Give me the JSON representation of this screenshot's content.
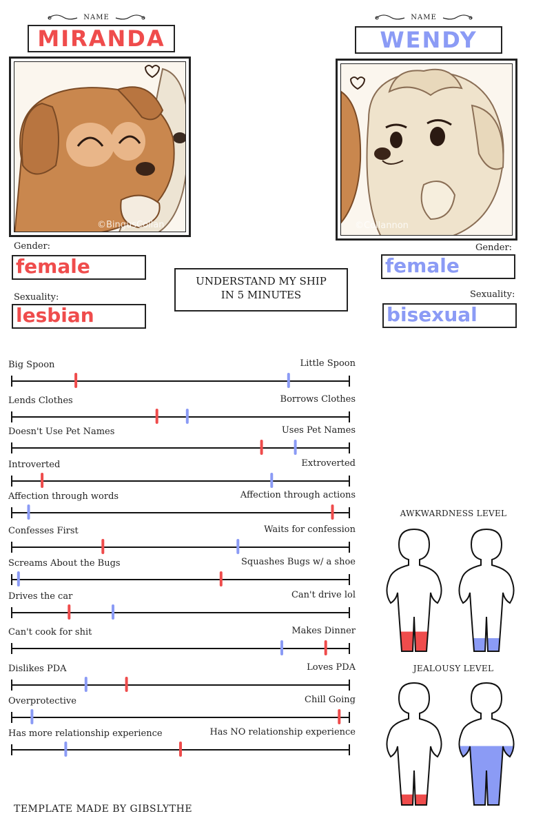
{
  "left": {
    "name_caption": "NAME",
    "name": "MIRANDA",
    "watermark": "©BingusCollan",
    "gender_label": "Gender:",
    "gender": "female",
    "sexuality_label": "Sexuality:",
    "sexuality": "lesbian",
    "color": "#ef4c4c"
  },
  "right": {
    "name_caption": "NAME",
    "name": "WENDY",
    "watermark": "©Collannon",
    "gender_label": "Gender:",
    "gender": "female",
    "sexuality_label": "Sexuality:",
    "sexuality": "bisexual",
    "color": "#8b9bf5"
  },
  "center_title": [
    "UNDERSTAND MY SHIP",
    "IN 5 MINUTES"
  ],
  "scales": [
    {
      "left": "Big Spoon",
      "right": "Little Spoon",
      "red": 0.19,
      "blue": 0.82
    },
    {
      "left": "Lends Clothes",
      "right": "Borrows Clothes",
      "red": 0.43,
      "blue": 0.52
    },
    {
      "left": "Doesn't Use Pet Names",
      "right": "Uses Pet Names",
      "red": 0.74,
      "blue": 0.84
    },
    {
      "left": "Introverted",
      "right": "Extroverted",
      "red": 0.09,
      "blue": 0.77
    },
    {
      "left": "Affection through words",
      "right": "Affection through actions",
      "red": 0.95,
      "blue": 0.05
    },
    {
      "left": "Confesses First",
      "right": "Waits for confession",
      "red": 0.27,
      "blue": 0.67
    },
    {
      "left": "Screams About the Bugs",
      "right": "Squashes Bugs w/ a shoe",
      "red": 0.62,
      "blue": 0.02
    },
    {
      "left": "Drives the car",
      "right": "Can't drive lol",
      "red": 0.17,
      "blue": 0.3
    },
    {
      "left": "Can't cook for shit",
      "right": "Makes Dinner",
      "red": 0.93,
      "blue": 0.8
    },
    {
      "left": "Dislikes PDA",
      "right": "Loves PDA",
      "red": 0.34,
      "blue": 0.22
    },
    {
      "left": "Overprotective",
      "right": "Chill Going",
      "red": 0.97,
      "blue": 0.06
    },
    {
      "left": "Has more relationship experience",
      "right": "Has NO relationship experience",
      "red": 0.5,
      "blue": 0.16
    }
  ],
  "awkwardness": {
    "title": "AWKWARDNESS LEVEL",
    "red_fill": 0.15,
    "blue_fill": 0.1
  },
  "jealousy": {
    "title": "JEALOUSY LEVEL",
    "red_fill": 0.08,
    "blue_fill": 0.45
  },
  "footer": "TEMPLATE MADE BY GIBSLYTHE"
}
